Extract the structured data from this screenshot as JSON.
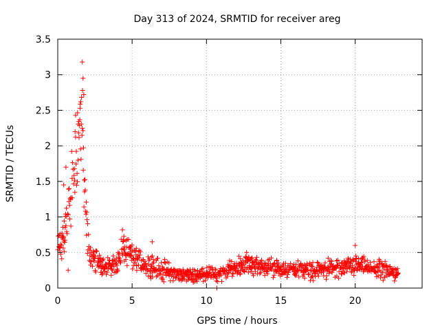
{
  "chart_data": {
    "type": "scatter",
    "title": "Day 313 of 2024, SRMTID for receiver areg",
    "xlabel": "GPS time / hours",
    "ylabel": "SRMTID / TECUs",
    "xlim": [
      0,
      24.5
    ],
    "ylim": [
      0,
      3.5
    ],
    "grid": true,
    "x_ticks": [
      0,
      5,
      10,
      15,
      20
    ],
    "x_tick_labels": [
      "0",
      "5",
      "10",
      "15",
      "20"
    ],
    "y_ticks": [
      0,
      0.5,
      1,
      1.5,
      2,
      2.5,
      3,
      3.5
    ],
    "y_tick_labels": [
      "0",
      "0.5",
      "1",
      "1.5",
      "2",
      "2.5",
      "3",
      "3.5"
    ],
    "marker": "+",
    "series": [
      {
        "name": "areg",
        "color": "#ff0000",
        "sample_interval_hours": 0.0333,
        "x_start": 0.0,
        "x_end": 22.9,
        "envelope": {
          "x": [
            0.0,
            0.3,
            0.6,
            0.9,
            1.0,
            1.2,
            1.4,
            1.5,
            1.6,
            1.7,
            1.8,
            2.0,
            2.2,
            2.5,
            3.0,
            3.5,
            4.0,
            4.3,
            4.6,
            5.0,
            5.5,
            6.0,
            6.5,
            7.0,
            7.5,
            8.0,
            8.5,
            9.0,
            9.5,
            10.0,
            10.5,
            11.0,
            11.5,
            12.0,
            12.5,
            13.0,
            13.5,
            14.0,
            14.5,
            15.0,
            15.5,
            16.0,
            16.5,
            17.0,
            17.5,
            18.0,
            18.5,
            19.0,
            19.5,
            20.0,
            20.5,
            21.0,
            21.5,
            22.0,
            22.5,
            22.9
          ],
          "center": [
            0.55,
            0.62,
            0.95,
            1.25,
            1.5,
            1.85,
            2.2,
            2.35,
            2.45,
            2.0,
            1.2,
            0.7,
            0.45,
            0.38,
            0.32,
            0.3,
            0.35,
            0.55,
            0.5,
            0.42,
            0.38,
            0.34,
            0.3,
            0.26,
            0.22,
            0.2,
            0.18,
            0.17,
            0.18,
            0.22,
            0.19,
            0.2,
            0.25,
            0.3,
            0.33,
            0.32,
            0.3,
            0.3,
            0.28,
            0.27,
            0.27,
            0.28,
            0.26,
            0.24,
            0.24,
            0.27,
            0.28,
            0.27,
            0.29,
            0.32,
            0.3,
            0.28,
            0.27,
            0.24,
            0.22,
            0.23
          ],
          "spread": [
            0.15,
            0.25,
            0.35,
            0.45,
            0.5,
            0.5,
            0.5,
            0.45,
            0.45,
            0.45,
            0.35,
            0.2,
            0.13,
            0.12,
            0.12,
            0.12,
            0.14,
            0.16,
            0.16,
            0.14,
            0.13,
            0.13,
            0.12,
            0.11,
            0.1,
            0.08,
            0.07,
            0.07,
            0.07,
            0.08,
            0.08,
            0.08,
            0.09,
            0.1,
            0.1,
            0.1,
            0.1,
            0.1,
            0.1,
            0.09,
            0.09,
            0.09,
            0.09,
            0.09,
            0.09,
            0.1,
            0.1,
            0.1,
            0.1,
            0.11,
            0.1,
            0.1,
            0.1,
            0.1,
            0.09,
            0.08
          ]
        },
        "peak_values": [
          {
            "x": 1.65,
            "y": 3.18
          },
          {
            "x": 1.7,
            "y": 2.95
          },
          {
            "x": 1.75,
            "y": 2.72
          },
          {
            "x": 1.55,
            "y": 2.62
          },
          {
            "x": 1.2,
            "y": 2.43
          },
          {
            "x": 0.55,
            "y": 1.7
          },
          {
            "x": 0.4,
            "y": 1.45
          },
          {
            "x": 4.35,
            "y": 0.82
          },
          {
            "x": 6.35,
            "y": 0.65
          },
          {
            "x": 20.0,
            "y": 0.6
          },
          {
            "x": 12.7,
            "y": 0.5
          },
          {
            "x": 0.7,
            "y": 0.25
          },
          {
            "x": 10.7,
            "y": 0.0
          }
        ]
      }
    ]
  }
}
